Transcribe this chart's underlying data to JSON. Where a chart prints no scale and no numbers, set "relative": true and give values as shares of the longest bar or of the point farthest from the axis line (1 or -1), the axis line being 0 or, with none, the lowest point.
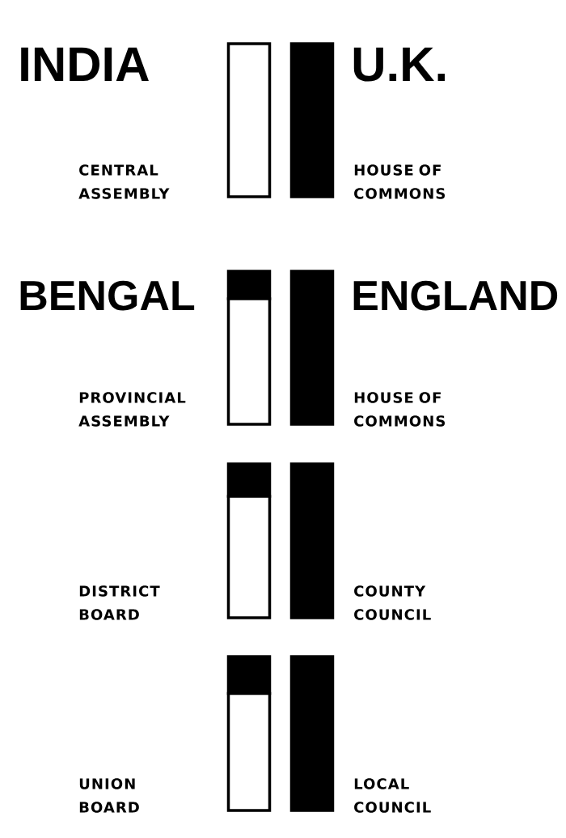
{
  "chart_data": [
    {
      "type": "bar",
      "stacked": true,
      "relative": true,
      "categories": [
        "CENTRAL ASSEMBLY",
        "HOUSE OF COMMONS"
      ],
      "series": [
        {
          "color": "#ffffff",
          "values": [
            1,
            0
          ]
        },
        {
          "color": "#000000",
          "values": [
            0,
            1
          ]
        }
      ],
      "annotations": [
        "INDIA",
        "U.K."
      ]
    },
    {
      "type": "bar",
      "stacked": true,
      "relative": true,
      "categories": [
        "PROVINCIAL ASSEMBLY",
        "HOUSE OF COMMONS"
      ],
      "series": [
        {
          "color": "#ffffff",
          "values": [
            0.82,
            0
          ]
        },
        {
          "color": "#000000",
          "values": [
            0.18,
            1
          ]
        }
      ],
      "annotations": [
        "BENGAL",
        "ENGLAND"
      ]
    },
    {
      "type": "bar",
      "stacked": true,
      "relative": true,
      "categories": [
        "DISTRICT BOARD",
        "COUNTY COUNCIL"
      ],
      "series": [
        {
          "color": "#ffffff",
          "values": [
            0.79,
            0
          ]
        },
        {
          "color": "#000000",
          "values": [
            0.21,
            1
          ]
        }
      ]
    },
    {
      "type": "bar",
      "stacked": true,
      "relative": true,
      "categories": [
        "UNION BOARD",
        "LOCAL COUNCIL"
      ],
      "series": [
        {
          "color": "#ffffff",
          "values": [
            0.76,
            0
          ]
        },
        {
          "color": "#000000",
          "values": [
            0.24,
            1
          ]
        }
      ]
    }
  ]
}
